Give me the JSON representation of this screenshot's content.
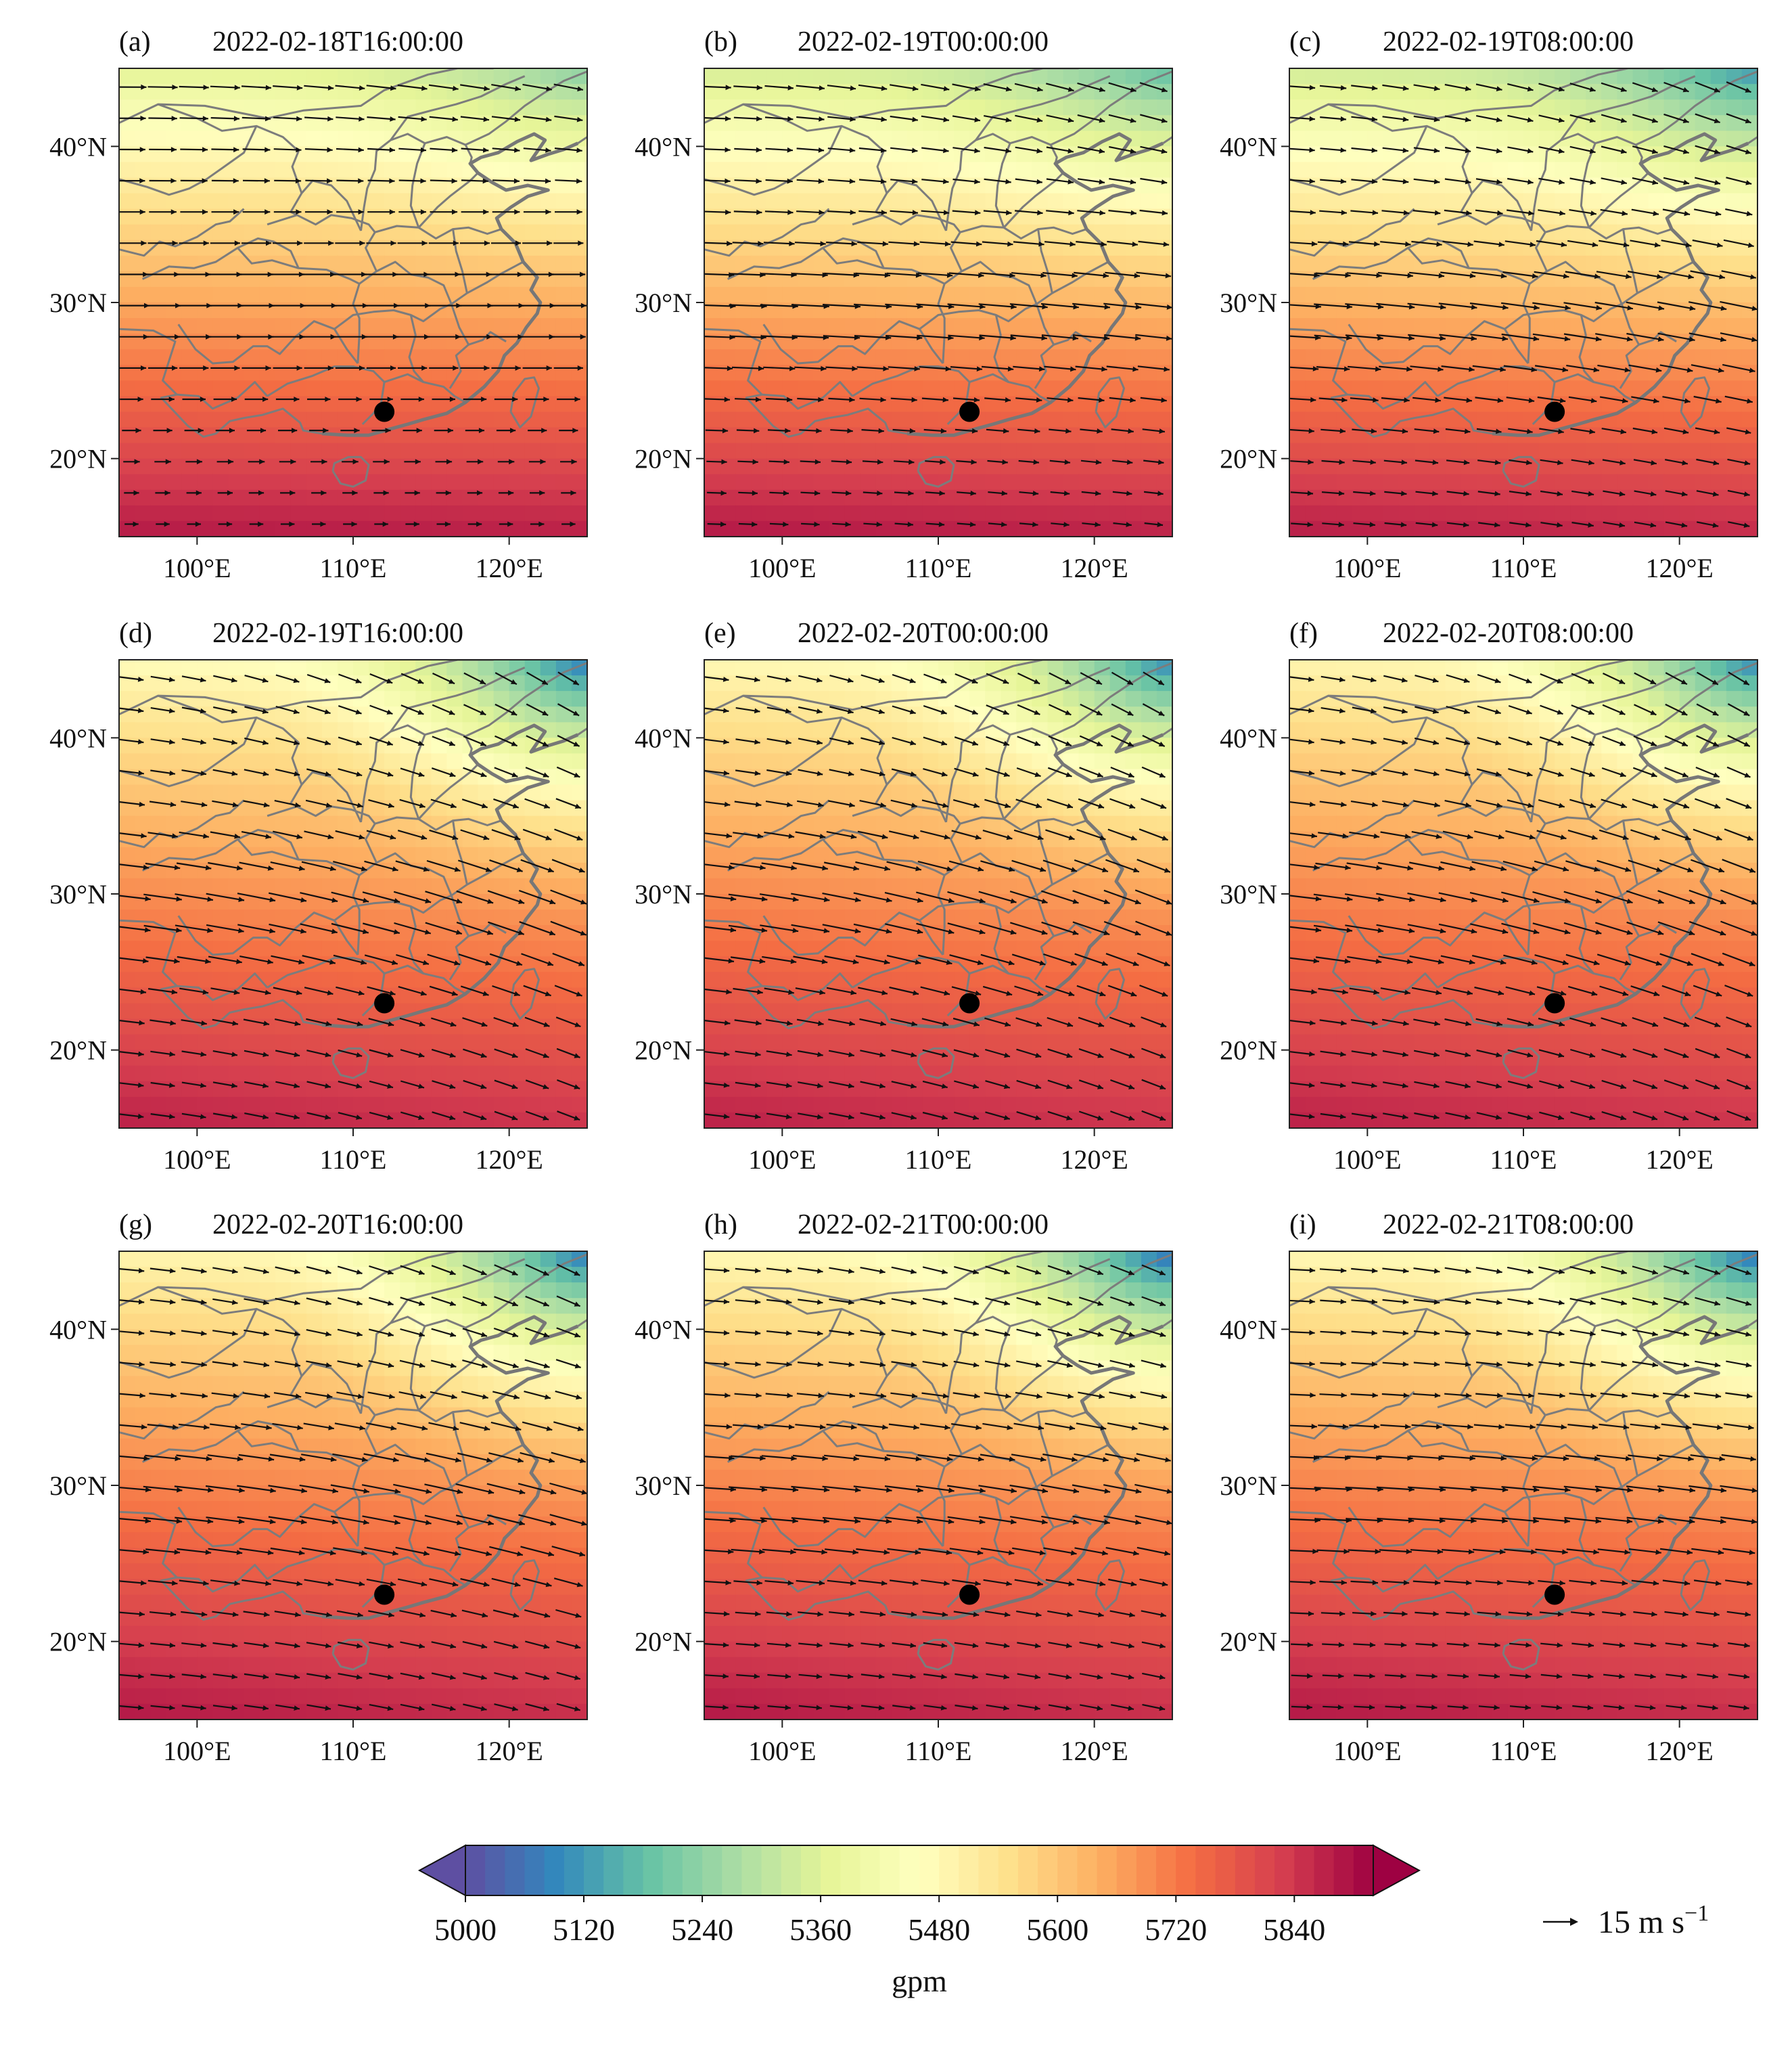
{
  "panels": [
    {
      "letter": "(a)",
      "time": "2022-02-18T16:00:00",
      "hgt": {
        "north": 5360,
        "south": 5880,
        "ne": 5230,
        "tilt": 0.15
      },
      "wind": {
        "u": 11,
        "v": 0.0,
        "speed_north": 1.25,
        "speed_south": 0.55
      }
    },
    {
      "letter": "(b)",
      "time": "2022-02-19T00:00:00",
      "hgt": {
        "north": 5330,
        "south": 5880,
        "ne": 5180,
        "tilt": 0.25
      },
      "wind": {
        "u": 10,
        "v": -0.8,
        "speed_north": 1.2,
        "speed_south": 0.75
      }
    },
    {
      "letter": "(c)",
      "time": "2022-02-19T08:00:00",
      "hgt": {
        "north": 5320,
        "south": 5870,
        "ne": 5120,
        "tilt": 0.35
      },
      "wind": {
        "u": 10,
        "v": -1.5,
        "speed_north": 1.1,
        "speed_south": 0.9
      }
    },
    {
      "letter": "(d)",
      "time": "2022-02-19T16:00:00",
      "hgt": {
        "north": 5450,
        "south": 5860,
        "ne": 5080,
        "tilt": 0.5
      },
      "wind": {
        "u": 9,
        "v": -2.5,
        "speed_north": 1.0,
        "speed_south": 1.0
      }
    },
    {
      "letter": "(e)",
      "time": "2022-02-20T00:00:00",
      "hgt": {
        "north": 5460,
        "south": 5860,
        "ne": 5100,
        "tilt": 0.5
      },
      "wind": {
        "u": 9,
        "v": -2.5,
        "speed_north": 1.0,
        "speed_south": 1.05
      }
    },
    {
      "letter": "(f)",
      "time": "2022-02-20T08:00:00",
      "hgt": {
        "north": 5470,
        "south": 5860,
        "ne": 5100,
        "tilt": 0.5
      },
      "wind": {
        "u": 9,
        "v": -2.5,
        "speed_north": 1.0,
        "speed_south": 1.05
      }
    },
    {
      "letter": "(g)",
      "time": "2022-02-20T16:00:00",
      "hgt": {
        "north": 5470,
        "south": 5870,
        "ne": 5080,
        "tilt": 0.55
      },
      "wind": {
        "u": 10,
        "v": -2.0,
        "speed_north": 1.05,
        "speed_south": 1.0
      }
    },
    {
      "letter": "(h)",
      "time": "2022-02-21T00:00:00",
      "hgt": {
        "north": 5460,
        "south": 5870,
        "ne": 5060,
        "tilt": 0.55
      },
      "wind": {
        "u": 10,
        "v": -1.5,
        "speed_north": 1.05,
        "speed_south": 0.95
      }
    },
    {
      "letter": "(i)",
      "time": "2022-02-21T08:00:00",
      "hgt": {
        "north": 5460,
        "south": 5870,
        "ne": 5070,
        "tilt": 0.55
      },
      "wind": {
        "u": 10,
        "v": -1.0,
        "speed_north": 1.1,
        "speed_south": 0.85
      }
    }
  ],
  "map_extent": {
    "lon_min": 95,
    "lon_max": 125,
    "lat_min": 15,
    "lat_max": 45
  },
  "station": {
    "lon": 112,
    "lat": 23
  },
  "lat_ticks": [
    {
      "value": 20,
      "label": "20°N"
    },
    {
      "value": 30,
      "label": "30°N"
    },
    {
      "value": 40,
      "label": "40°N"
    }
  ],
  "lon_ticks": [
    {
      "value": 100,
      "label": "100°E"
    },
    {
      "value": 110,
      "label": "110°E"
    },
    {
      "value": 120,
      "label": "120°E"
    }
  ],
  "colorbar": {
    "min": 5000,
    "max": 5920,
    "step": 20,
    "ticks": [
      "5000",
      "5120",
      "5240",
      "5360",
      "5480",
      "5600",
      "5720",
      "5840"
    ],
    "unit": "gpm",
    "extend": "both"
  },
  "reference_vector": {
    "value": "15 m s",
    "exponent": "−1"
  },
  "colors": {
    "stops": [
      "#5e4fa2",
      "#3288bd",
      "#66c2a5",
      "#abdda4",
      "#e6f598",
      "#ffffbf",
      "#fee08b",
      "#fdae61",
      "#f46d43",
      "#d53e4f",
      "#9e0142"
    ],
    "border": "#7c7c7c",
    "station": "#000000"
  }
}
